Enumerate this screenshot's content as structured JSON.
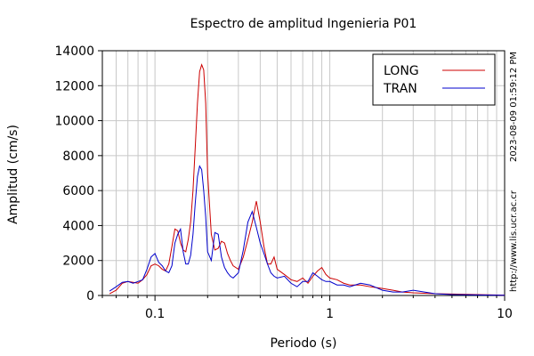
{
  "chart_data": {
    "type": "line",
    "title": "Espectro de amplitud Ingenieria P01",
    "xlabel": "Periodo (s)",
    "ylabel": "Amplitud (cm/s)",
    "x_scale": "log",
    "xlim": [
      0.05,
      10
    ],
    "ylim": [
      0,
      14000
    ],
    "x_ticks": [
      0.1,
      1,
      10
    ],
    "x_tick_labels": [
      "0.1",
      "1",
      "10"
    ],
    "y_ticks": [
      0,
      2000,
      4000,
      6000,
      8000,
      10000,
      12000,
      14000
    ],
    "y_tick_labels": [
      "0",
      "2000",
      "4000",
      "6000",
      "8000",
      "10000",
      "12000",
      "14000"
    ],
    "grid": true,
    "legend_position": "top-right",
    "side_text": [
      "http://www.lis.ucr.ac.cr",
      "2023-08-09 01:59:12 PM"
    ],
    "series": [
      {
        "name": "LONG",
        "color": "#cc0000",
        "points": [
          [
            0.055,
            100
          ],
          [
            0.06,
            300
          ],
          [
            0.065,
            700
          ],
          [
            0.07,
            800
          ],
          [
            0.075,
            750
          ],
          [
            0.08,
            700
          ],
          [
            0.085,
            900
          ],
          [
            0.09,
            1200
          ],
          [
            0.095,
            1700
          ],
          [
            0.1,
            1800
          ],
          [
            0.105,
            1700
          ],
          [
            0.11,
            1500
          ],
          [
            0.115,
            1400
          ],
          [
            0.12,
            1800
          ],
          [
            0.125,
            2800
          ],
          [
            0.13,
            3800
          ],
          [
            0.135,
            3700
          ],
          [
            0.14,
            3000
          ],
          [
            0.145,
            2600
          ],
          [
            0.15,
            2500
          ],
          [
            0.155,
            3200
          ],
          [
            0.16,
            4200
          ],
          [
            0.165,
            6000
          ],
          [
            0.17,
            8500
          ],
          [
            0.175,
            11000
          ],
          [
            0.18,
            12800
          ],
          [
            0.185,
            13200
          ],
          [
            0.19,
            12900
          ],
          [
            0.195,
            11000
          ],
          [
            0.2,
            7000
          ],
          [
            0.21,
            3500
          ],
          [
            0.22,
            2600
          ],
          [
            0.23,
            2700
          ],
          [
            0.24,
            3100
          ],
          [
            0.25,
            3000
          ],
          [
            0.26,
            2400
          ],
          [
            0.27,
            2000
          ],
          [
            0.28,
            1700
          ],
          [
            0.3,
            1500
          ],
          [
            0.32,
            2200
          ],
          [
            0.34,
            3200
          ],
          [
            0.36,
            4200
          ],
          [
            0.38,
            5400
          ],
          [
            0.4,
            4200
          ],
          [
            0.42,
            2800
          ],
          [
            0.44,
            1800
          ],
          [
            0.46,
            1800
          ],
          [
            0.48,
            2200
          ],
          [
            0.5,
            1500
          ],
          [
            0.55,
            1200
          ],
          [
            0.6,
            900
          ],
          [
            0.65,
            800
          ],
          [
            0.7,
            1000
          ],
          [
            0.75,
            700
          ],
          [
            0.8,
            1100
          ],
          [
            0.85,
            1400
          ],
          [
            0.9,
            1600
          ],
          [
            0.95,
            1200
          ],
          [
            1.0,
            1000
          ],
          [
            1.1,
            900
          ],
          [
            1.2,
            700
          ],
          [
            1.3,
            600
          ],
          [
            1.5,
            600
          ],
          [
            1.7,
            500
          ],
          [
            2.0,
            400
          ],
          [
            2.3,
            300
          ],
          [
            2.6,
            200
          ],
          [
            3.0,
            150
          ],
          [
            4.0,
            100
          ],
          [
            5.0,
            80
          ],
          [
            7.0,
            50
          ],
          [
            10.0,
            20
          ]
        ]
      },
      {
        "name": "TRAN",
        "color": "#0000cc",
        "points": [
          [
            0.055,
            250
          ],
          [
            0.06,
            500
          ],
          [
            0.065,
            750
          ],
          [
            0.07,
            800
          ],
          [
            0.075,
            700
          ],
          [
            0.08,
            800
          ],
          [
            0.085,
            900
          ],
          [
            0.09,
            1500
          ],
          [
            0.095,
            2200
          ],
          [
            0.1,
            2400
          ],
          [
            0.105,
            1900
          ],
          [
            0.11,
            1700
          ],
          [
            0.115,
            1400
          ],
          [
            0.12,
            1300
          ],
          [
            0.125,
            1700
          ],
          [
            0.13,
            3000
          ],
          [
            0.135,
            3500
          ],
          [
            0.14,
            3800
          ],
          [
            0.145,
            2500
          ],
          [
            0.15,
            1800
          ],
          [
            0.155,
            1800
          ],
          [
            0.16,
            2300
          ],
          [
            0.165,
            3500
          ],
          [
            0.17,
            5300
          ],
          [
            0.175,
            6800
          ],
          [
            0.18,
            7400
          ],
          [
            0.185,
            7200
          ],
          [
            0.19,
            6000
          ],
          [
            0.195,
            4500
          ],
          [
            0.2,
            2500
          ],
          [
            0.21,
            2000
          ],
          [
            0.22,
            3600
          ],
          [
            0.23,
            3500
          ],
          [
            0.24,
            2200
          ],
          [
            0.25,
            1600
          ],
          [
            0.26,
            1300
          ],
          [
            0.27,
            1100
          ],
          [
            0.28,
            1000
          ],
          [
            0.3,
            1300
          ],
          [
            0.32,
            2600
          ],
          [
            0.34,
            4200
          ],
          [
            0.36,
            4800
          ],
          [
            0.38,
            3900
          ],
          [
            0.4,
            3000
          ],
          [
            0.42,
            2400
          ],
          [
            0.44,
            1800
          ],
          [
            0.46,
            1300
          ],
          [
            0.48,
            1100
          ],
          [
            0.5,
            1000
          ],
          [
            0.55,
            1100
          ],
          [
            0.6,
            700
          ],
          [
            0.65,
            500
          ],
          [
            0.7,
            800
          ],
          [
            0.75,
            800
          ],
          [
            0.8,
            1300
          ],
          [
            0.85,
            1100
          ],
          [
            0.9,
            900
          ],
          [
            0.95,
            800
          ],
          [
            1.0,
            800
          ],
          [
            1.1,
            600
          ],
          [
            1.2,
            600
          ],
          [
            1.3,
            500
          ],
          [
            1.5,
            700
          ],
          [
            1.7,
            600
          ],
          [
            2.0,
            300
          ],
          [
            2.3,
            200
          ],
          [
            2.6,
            200
          ],
          [
            3.0,
            300
          ],
          [
            4.0,
            100
          ],
          [
            5.0,
            50
          ],
          [
            7.0,
            30
          ],
          [
            10.0,
            10
          ]
        ]
      }
    ]
  }
}
